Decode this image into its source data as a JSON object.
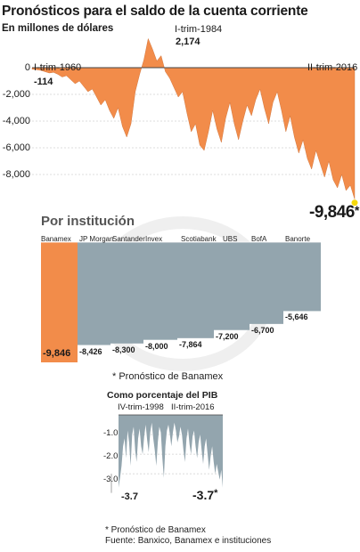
{
  "chart_data": [
    {
      "type": "area",
      "title": "Pronósticos para el saldo de la cuenta corriente",
      "subtitle": "En millones de dólares",
      "yticks": [
        "0",
        "-2,000",
        "-4,000",
        "-6,000",
        "-8,000"
      ],
      "ylim": [
        -10000,
        2500
      ],
      "color": "#f28c4a",
      "annotations": {
        "start_label": "I-trim-1960",
        "start_value": "-114",
        "peak_label": "I-trim-1984",
        "peak_value": "2,174",
        "end_label": "II-trim-2016",
        "end_value": "-9,846",
        "end_star": "*"
      },
      "x": [
        0,
        3,
        6,
        9,
        12,
        15,
        18,
        21,
        24,
        27,
        30,
        33,
        36,
        39,
        42,
        45,
        48,
        51,
        54,
        57,
        60,
        63,
        66,
        69,
        72,
        75,
        78,
        81,
        84,
        87,
        90,
        93,
        96,
        99,
        102,
        105,
        108,
        111,
        114,
        117,
        120,
        123,
        126,
        129,
        132,
        135,
        138,
        141,
        144,
        147,
        150,
        153,
        156,
        159,
        162,
        165,
        168,
        171,
        174,
        177,
        180,
        183,
        186,
        189,
        192,
        195,
        198,
        201,
        204,
        207,
        210,
        213,
        216,
        219,
        222,
        225
      ],
      "values": [
        -114,
        -150,
        -200,
        -300,
        -400,
        -350,
        -500,
        -700,
        -600,
        -900,
        -1200,
        -1000,
        -1400,
        -1800,
        -1600,
        -2200,
        -2800,
        -2400,
        -3200,
        -3800,
        -3000,
        -4400,
        -5200,
        -4200,
        -1800,
        -500,
        600,
        2174,
        1400,
        500,
        900,
        -300,
        -800,
        -1500,
        -2200,
        -1800,
        -3400,
        -4800,
        -4200,
        -5800,
        -6200,
        -4800,
        -3200,
        -4600,
        -5600,
        -3800,
        -2600,
        -4200,
        -5400,
        -4000,
        -2800,
        -3600,
        -2400,
        -1600,
        -3000,
        -4200,
        -2600,
        -1800,
        -3200,
        -4800,
        -3600,
        -5200,
        -6400,
        -5400,
        -6800,
        -7600,
        -6200,
        -7200,
        -8200,
        -7000,
        -8400,
        -9000,
        -8000,
        -9200,
        -8800,
        -9846
      ]
    },
    {
      "type": "bar",
      "title": "Por institución",
      "categories": [
        "Banamex",
        "JP Morgan",
        "Santander",
        "Invex",
        "Scotiabank",
        "UBS",
        "BofA",
        "Banorte"
      ],
      "values": [
        -9846,
        -8426,
        -8300,
        -8000,
        -7864,
        -7200,
        -6700,
        -5646
      ],
      "value_labels": [
        "-9,846",
        "-8,426",
        "-8,300",
        "-8,000",
        "-7,864",
        "-7,200",
        "-6,700",
        "-5,646"
      ],
      "ylim": [
        -10300,
        0
      ],
      "colors": {
        "highlight": "#f28c4a",
        "other": "#93a5ae"
      }
    },
    {
      "type": "area",
      "title": "Como porcentaje del PIB",
      "yticks": [
        "-1.0",
        "-2.0",
        "-3.0"
      ],
      "ylim": [
        -3.9,
        0
      ],
      "color": "#93a5ae",
      "annotations": {
        "start_label": "IV-trim-1998",
        "start_value": "-3.7",
        "end_label": "II-trim-2016",
        "end_value": "-3.7",
        "end_star": "*"
      },
      "x": [
        0,
        1,
        2,
        3,
        4,
        5,
        6,
        7,
        8,
        9,
        10,
        11,
        12,
        13,
        14,
        15,
        16,
        17,
        18,
        19,
        20,
        21,
        22,
        23,
        24,
        25,
        26,
        27,
        28,
        29,
        30,
        31,
        32,
        33,
        34,
        35,
        36,
        37,
        38,
        39,
        40,
        41,
        42,
        43,
        44,
        45,
        46,
        47,
        48,
        49,
        50,
        51,
        52,
        53,
        54,
        55,
        56,
        57,
        58,
        59,
        60,
        61,
        62,
        63,
        64,
        65,
        66,
        67,
        68,
        69
      ],
      "values": [
        -3.7,
        -3.2,
        -2.6,
        -1.6,
        -1.2,
        -2.2,
        -0.8,
        -1.4,
        -2.6,
        -1.0,
        -0.6,
        -1.8,
        -2.4,
        -1.2,
        -0.7,
        -1.6,
        -2.0,
        -1.1,
        -0.5,
        -1.3,
        -1.9,
        -0.9,
        -0.4,
        -1.2,
        -1.8,
        -2.6,
        -1.4,
        -0.6,
        -0.9,
        -2.2,
        -3.2,
        -1.6,
        -0.8,
        -0.5,
        -1.0,
        -1.6,
        -0.9,
        -0.4,
        -0.8,
        -1.4,
        -1.1,
        -0.6,
        -1.0,
        -1.8,
        -2.4,
        -1.2,
        -0.7,
        -1.5,
        -2.0,
        -1.1,
        -0.8,
        -1.6,
        -2.2,
        -1.4,
        -1.0,
        -1.8,
        -2.5,
        -1.6,
        -1.2,
        -2.0,
        -2.8,
        -2.1,
        -1.6,
        -2.4,
        -3.0,
        -2.5,
        -2.9,
        -3.3,
        -2.8,
        -3.7
      ]
    }
  ],
  "notes": {
    "note1": "* Pronóstico de Banamex",
    "note2": "* Pronóstico de Banamex",
    "source": "Fuente: Banxico, Banamex e instituciones"
  }
}
